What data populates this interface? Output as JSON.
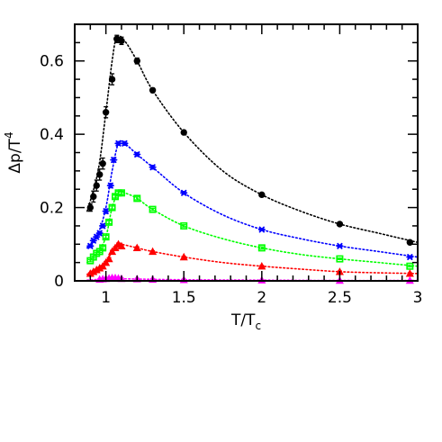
{
  "chart_data": {
    "type": "scatter",
    "title": "",
    "xlabel": {
      "main": "T/T",
      "subscript": "c"
    },
    "ylabel": {
      "main": "Δp/T",
      "superscript": "4"
    },
    "xlim": [
      0.8,
      3.0
    ],
    "ylim": [
      0,
      0.7
    ],
    "xticks": [
      1,
      1.5,
      2,
      2.5,
      3
    ],
    "xtick_labels": [
      "1",
      "1.5",
      "2",
      "2.5",
      "3"
    ],
    "yticks": [
      0,
      0.2,
      0.4,
      0.6
    ],
    "ytick_labels": [
      "0",
      "0.2",
      "0.4",
      "0.6"
    ],
    "grid": false,
    "series": [
      {
        "color": "#000000",
        "marker": "circle",
        "x": [
          0.9,
          0.92,
          0.94,
          0.96,
          0.98,
          1.0,
          1.04,
          1.07,
          1.1,
          1.2,
          1.3,
          1.5,
          2.0,
          2.5,
          2.95
        ],
        "y": [
          0.2,
          0.23,
          0.26,
          0.29,
          0.32,
          0.46,
          0.55,
          0.66,
          0.655,
          0.6,
          0.52,
          0.405,
          0.235,
          0.155,
          0.105
        ],
        "err": [
          0.01,
          0.015,
          0.015,
          0.015,
          0.015,
          0.015,
          0.015,
          0.01,
          0.01,
          0.008,
          0.006,
          0.005,
          0.004,
          0.004,
          0.004
        ],
        "curve_x": [
          0.88,
          0.95,
          1.0,
          1.04,
          1.07,
          1.12,
          1.2,
          1.3,
          1.5,
          1.75,
          2.0,
          2.25,
          2.5,
          2.75,
          3.0
        ],
        "curve_y": [
          0.19,
          0.3,
          0.46,
          0.6,
          0.665,
          0.655,
          0.6,
          0.52,
          0.405,
          0.3,
          0.235,
          0.19,
          0.155,
          0.13,
          0.105
        ]
      },
      {
        "color": "#0000ff",
        "marker": "star",
        "x": [
          0.9,
          0.92,
          0.94,
          0.96,
          0.98,
          1.0,
          1.03,
          1.05,
          1.08,
          1.12,
          1.2,
          1.3,
          1.5,
          2.0,
          2.5,
          2.95
        ],
        "y": [
          0.095,
          0.11,
          0.12,
          0.13,
          0.15,
          0.19,
          0.26,
          0.33,
          0.375,
          0.375,
          0.345,
          0.31,
          0.24,
          0.14,
          0.095,
          0.065
        ],
        "err": [
          0.004,
          0.005,
          0.005,
          0.005,
          0.005,
          0.006,
          0.006,
          0.006,
          0.005,
          0.005,
          0.005,
          0.005,
          0.004,
          0.003,
          0.003,
          0.003
        ],
        "curve_x": [
          0.88,
          0.95,
          1.0,
          1.04,
          1.08,
          1.12,
          1.2,
          1.3,
          1.5,
          1.75,
          2.0,
          2.25,
          2.5,
          2.75,
          3.0
        ],
        "curve_y": [
          0.09,
          0.13,
          0.2,
          0.3,
          0.375,
          0.375,
          0.345,
          0.31,
          0.24,
          0.18,
          0.14,
          0.115,
          0.095,
          0.08,
          0.065
        ]
      },
      {
        "color": "#00ff00",
        "marker": "square",
        "x": [
          0.9,
          0.92,
          0.94,
          0.96,
          0.98,
          1.0,
          1.02,
          1.04,
          1.06,
          1.08,
          1.1,
          1.2,
          1.3,
          1.5,
          2.0,
          2.5,
          2.95
        ],
        "y": [
          0.055,
          0.065,
          0.075,
          0.08,
          0.09,
          0.12,
          0.16,
          0.2,
          0.23,
          0.24,
          0.24,
          0.225,
          0.195,
          0.15,
          0.09,
          0.06,
          0.04
        ],
        "err": [
          0.003,
          0.003,
          0.003,
          0.003,
          0.004,
          0.004,
          0.004,
          0.004,
          0.004,
          0.004,
          0.004,
          0.004,
          0.003,
          0.003,
          0.003,
          0.002,
          0.002
        ],
        "curve_x": [
          0.88,
          0.95,
          1.0,
          1.04,
          1.08,
          1.12,
          1.2,
          1.3,
          1.5,
          1.75,
          2.0,
          2.25,
          2.5,
          2.75,
          3.0
        ],
        "curve_y": [
          0.05,
          0.08,
          0.12,
          0.2,
          0.24,
          0.24,
          0.225,
          0.195,
          0.15,
          0.115,
          0.09,
          0.072,
          0.06,
          0.05,
          0.04
        ]
      },
      {
        "color": "#ff0000",
        "marker": "triangle",
        "x": [
          0.9,
          0.92,
          0.94,
          0.96,
          0.98,
          1.0,
          1.02,
          1.04,
          1.06,
          1.08,
          1.1,
          1.2,
          1.3,
          1.5,
          2.0,
          2.5,
          2.95
        ],
        "y": [
          0.02,
          0.025,
          0.03,
          0.035,
          0.04,
          0.05,
          0.06,
          0.08,
          0.09,
          0.1,
          0.095,
          0.09,
          0.08,
          0.065,
          0.04,
          0.025,
          0.02
        ],
        "err": [
          0.002,
          0.002,
          0.002,
          0.002,
          0.002,
          0.003,
          0.003,
          0.003,
          0.003,
          0.003,
          0.003,
          0.003,
          0.002,
          0.002,
          0.002,
          0.002,
          0.002
        ],
        "curve_x": [
          0.88,
          0.95,
          1.0,
          1.04,
          1.08,
          1.12,
          1.2,
          1.3,
          1.5,
          1.75,
          2.0,
          2.25,
          2.5,
          2.75,
          3.0
        ],
        "curve_y": [
          0.018,
          0.033,
          0.05,
          0.08,
          0.1,
          0.098,
          0.09,
          0.08,
          0.065,
          0.05,
          0.04,
          0.032,
          0.025,
          0.022,
          0.02
        ]
      },
      {
        "color": "#ff00ff",
        "marker": "triangle",
        "x": [
          0.96,
          0.98,
          1.0,
          1.02,
          1.04,
          1.06,
          1.08,
          1.1,
          1.2,
          1.3,
          1.5,
          2.0,
          2.5,
          2.95
        ],
        "y": [
          0.004,
          0.005,
          0.006,
          0.007,
          0.008,
          0.008,
          0.007,
          0.006,
          0.005,
          0.004,
          0.003,
          0.002,
          0.001,
          0.001
        ],
        "err": [
          0.002,
          0.002,
          0.002,
          0.002,
          0.002,
          0.002,
          0.002,
          0.002,
          0.002,
          0.002,
          0.002,
          0.001,
          0.001,
          0.001
        ],
        "curve_x": [
          0.88,
          0.95,
          1.0,
          1.05,
          1.1,
          1.2,
          1.5,
          2.0,
          2.5,
          3.0
        ],
        "curve_y": [
          0.002,
          0.004,
          0.006,
          0.008,
          0.006,
          0.005,
          0.003,
          0.002,
          0.001,
          0.001
        ]
      }
    ]
  }
}
